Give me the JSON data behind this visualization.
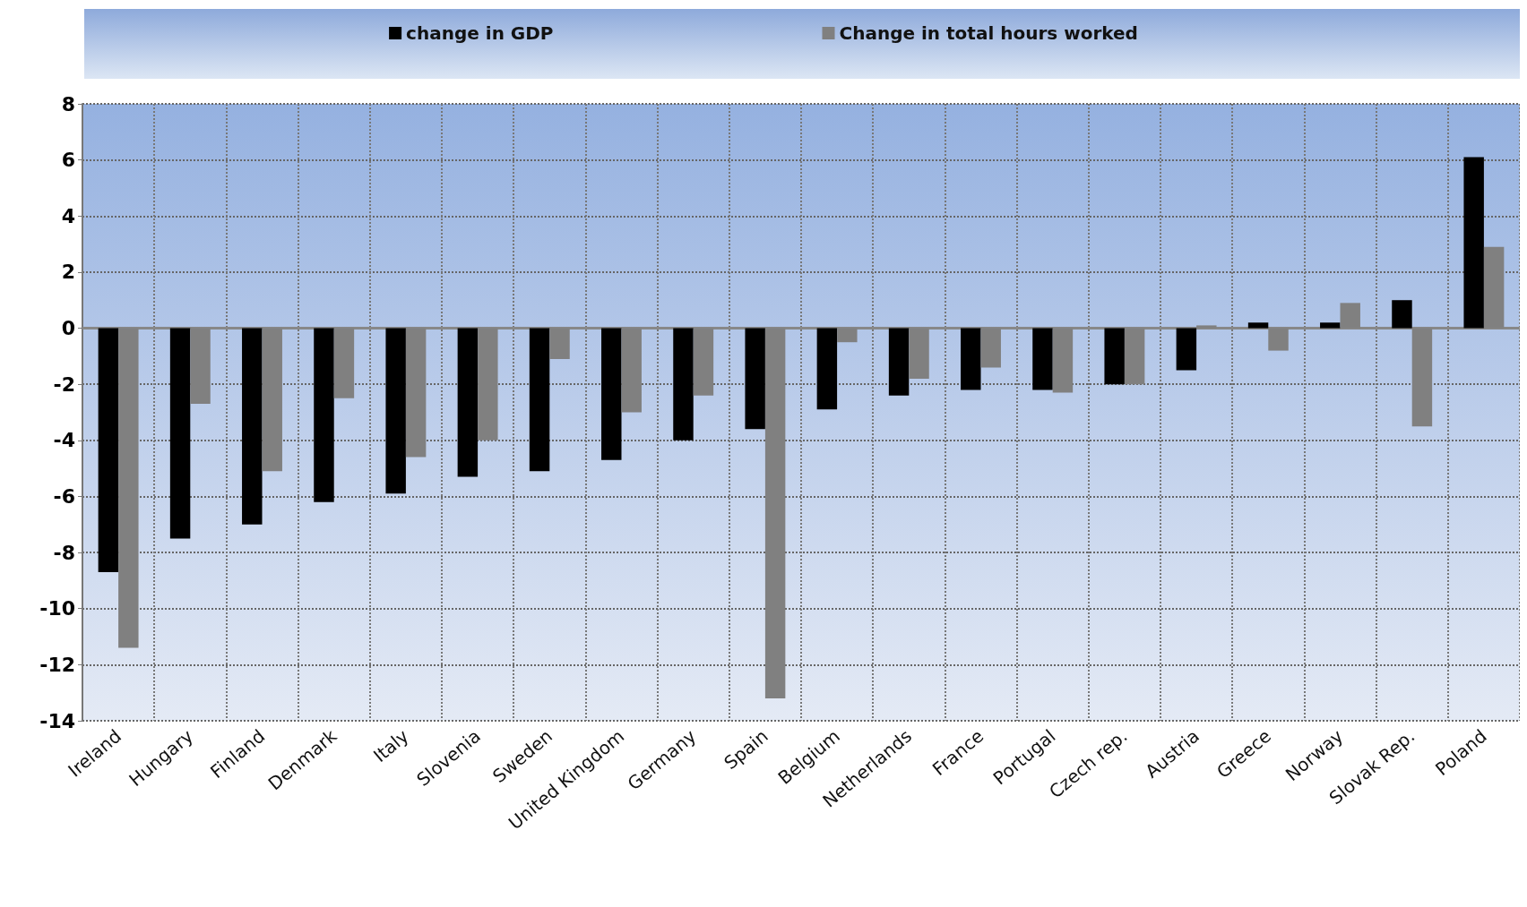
{
  "chart_data": {
    "type": "bar",
    "categories": [
      "Ireland",
      "Hungary",
      "Finland",
      "Denmark",
      "Italy",
      "Slovenia",
      "Sweden",
      "United Kingdom",
      "Germany",
      "Spain",
      "Belgium",
      "Netherlands",
      "France",
      "Portugal",
      "Czech rep.",
      "Austria",
      "Greece",
      "Norway",
      "Slovak Rep.",
      "Poland"
    ],
    "series": [
      {
        "name": "change in GDP",
        "color": "#000000",
        "values": [
          -8.7,
          -7.5,
          -7.0,
          -6.2,
          -5.9,
          -5.3,
          -5.1,
          -4.7,
          -4.0,
          -3.6,
          -2.9,
          -2.4,
          -2.2,
          -2.2,
          -2.0,
          -1.5,
          0.2,
          0.2,
          1.0,
          6.1
        ]
      },
      {
        "name": "Change in total hours worked",
        "color": "#808080",
        "values": [
          -11.4,
          -2.7,
          -5.1,
          -2.5,
          -4.6,
          -4.0,
          -1.1,
          -3.0,
          -2.4,
          -13.2,
          -0.5,
          -1.8,
          -1.4,
          -2.3,
          -2.0,
          0.1,
          -0.8,
          0.9,
          -3.5,
          2.9
        ]
      }
    ],
    "ylim": [
      -14,
      8
    ],
    "yticks": [
      -14,
      -12,
      -10,
      -8,
      -6,
      -4,
      -2,
      0,
      2,
      4,
      6,
      8
    ],
    "grid": true,
    "legend": "top"
  }
}
